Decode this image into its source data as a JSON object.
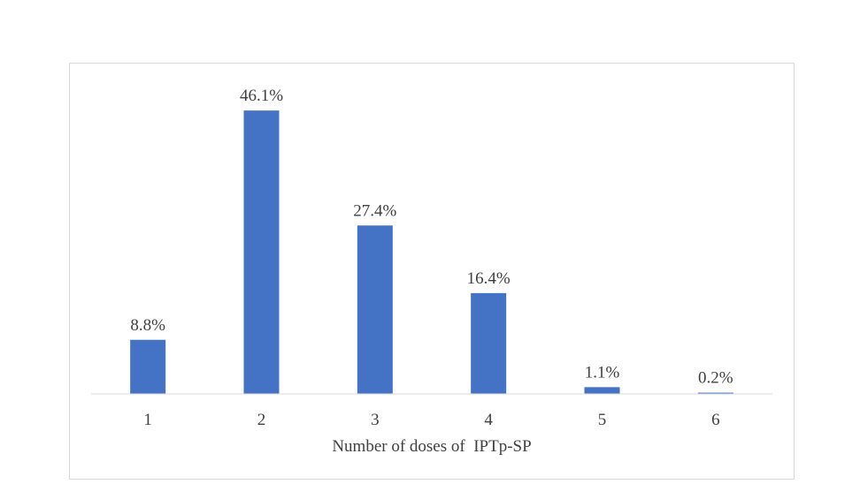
{
  "chart_data": {
    "type": "bar",
    "categories": [
      "1",
      "2",
      "3",
      "4",
      "5",
      "6"
    ],
    "values": [
      8.8,
      46.1,
      27.4,
      16.4,
      1.1,
      0.2
    ],
    "value_labels": [
      "8.8%",
      "46.1%",
      "27.4%",
      "16.4%",
      "1.1%",
      "0.2%"
    ],
    "title": "",
    "xlabel": "Number of doses of  IPTp-SP",
    "ylabel": "",
    "ylim": [
      0,
      50
    ],
    "grid": false,
    "legend": "none",
    "bar_color": "#4472c4",
    "axis_color": "#d9d9d9",
    "label_color": "#404040"
  }
}
